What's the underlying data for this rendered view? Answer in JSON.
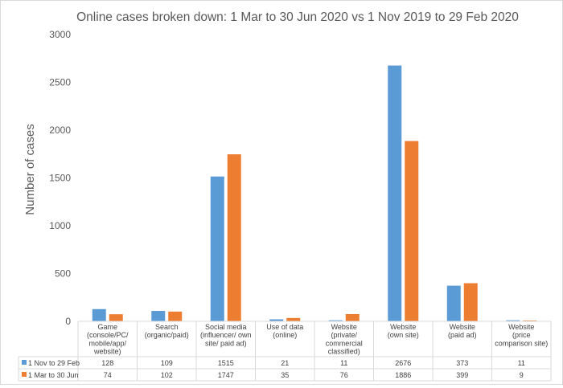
{
  "chart_data": {
    "type": "bar",
    "title": "Online cases broken down: 1 Mar to 30 Jun 2020 vs 1 Nov 2019 to 29 Feb 2020",
    "ylabel": "Number of cases",
    "xlabel": "",
    "ylim": [
      0,
      3000
    ],
    "yticks": [
      "0",
      "500",
      "1000",
      "1500",
      "2000",
      "2500",
      "3000"
    ],
    "grid": false,
    "legend": "data-table",
    "categories": [
      [
        "Game",
        "(console/PC/",
        "mobile/app/",
        "website)"
      ],
      [
        "Search",
        "(organic/paid)"
      ],
      [
        "Social media",
        "(influencer/ own",
        "site/ paid ad)"
      ],
      [
        "Use of data",
        "(online)"
      ],
      [
        "Website",
        "(private/",
        "commercial",
        "classified)"
      ],
      [
        "Website",
        "(own site)"
      ],
      [
        "Website",
        "(paid ad)"
      ],
      [
        "Website",
        "(price",
        "comparison site)"
      ]
    ],
    "series": [
      {
        "name": "1 Nov to 29 Feb",
        "color": "#5b9bd5",
        "values": [
          128,
          109,
          1515,
          21,
          11,
          2676,
          373,
          11
        ]
      },
      {
        "name": "1 Mar to 30 Jun",
        "color": "#ed7d31",
        "values": [
          74,
          102,
          1747,
          35,
          76,
          1886,
          399,
          9
        ]
      }
    ]
  }
}
